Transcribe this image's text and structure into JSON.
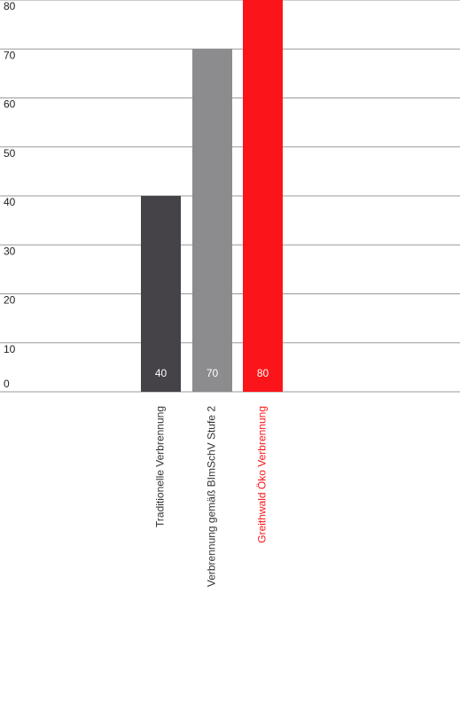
{
  "chart_data": {
    "type": "bar",
    "categories": [
      "Traditionelle Verbrennung",
      "Verbrennung gemäß BImSchV Stufe 2",
      "Greithwald Öko Verbrennung"
    ],
    "values": [
      40,
      70,
      80
    ],
    "colors": [
      "#454347",
      "#8c8c8e",
      "#fb1419"
    ],
    "category_label_colors": [
      "#333333",
      "#333333",
      "#fb1419"
    ],
    "value_label_color": "#ffffff",
    "ylim": [
      0,
      80
    ],
    "yticks": [
      0,
      10,
      20,
      30,
      40,
      50,
      60,
      70,
      80
    ],
    "grid": true
  }
}
